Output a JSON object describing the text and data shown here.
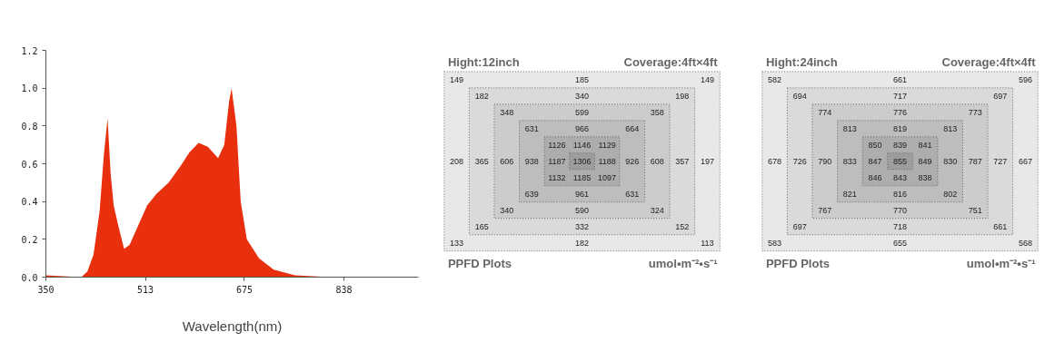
{
  "chart_data": [
    {
      "type": "area",
      "xlabel": "Wavelength(nm)",
      "x": [
        350,
        408,
        418,
        428,
        438,
        445,
        451,
        456,
        461,
        468,
        478,
        487,
        502,
        516,
        531,
        551,
        571,
        585,
        600,
        615,
        632,
        642,
        650,
        654,
        662,
        669,
        679,
        699,
        723,
        758,
        817,
        960
      ],
      "values": [
        0.01,
        0.0,
        0.03,
        0.12,
        0.35,
        0.65,
        0.84,
        0.55,
        0.38,
        0.28,
        0.15,
        0.17,
        0.28,
        0.38,
        0.44,
        0.5,
        0.59,
        0.66,
        0.71,
        0.69,
        0.63,
        0.7,
        0.93,
        1.0,
        0.8,
        0.4,
        0.2,
        0.1,
        0.04,
        0.01,
        0.0,
        0.0
      ],
      "color": "#e8300f",
      "xlim": [
        350,
        960
      ],
      "xticks": [
        350,
        513,
        675,
        838
      ],
      "ylim": [
        0,
        1.2
      ],
      "yticks": [
        {
          "value": 0,
          "label": "0.0"
        },
        {
          "value": 0.2,
          "label": "0.2"
        },
        {
          "value": 0.4,
          "label": "0.4"
        },
        {
          "value": 0.6,
          "label": "0.6"
        },
        {
          "value": 0.8,
          "label": "0.8"
        },
        {
          "value": 1.0,
          "label": "1.0"
        },
        {
          "value": 1.2,
          "label": "1.2"
        }
      ],
      "grid": false
    },
    {
      "type": "other",
      "title": "Hight:12inch",
      "subtitle": "Coverage:4ft×4ft",
      "annotations": [
        "PPFD Plots",
        "umol•m⁻²•s⁻¹"
      ],
      "cell_labels": [
        [
          "149",
          null,
          null,
          null,
          null,
          "185",
          null,
          null,
          null,
          null,
          "149"
        ],
        [
          null,
          "182",
          null,
          null,
          null,
          "340",
          null,
          null,
          null,
          "198",
          null
        ],
        [
          null,
          null,
          "348",
          null,
          null,
          "599",
          null,
          null,
          "358",
          null,
          null
        ],
        [
          null,
          null,
          null,
          "631",
          null,
          "966",
          null,
          "664",
          null,
          null,
          null
        ],
        [
          null,
          null,
          null,
          null,
          "1126",
          "1146",
          "1129",
          null,
          null,
          null,
          null
        ],
        [
          "208",
          "365",
          "606",
          "938",
          "1187",
          "1306",
          "1188",
          "926",
          "608",
          "357",
          "197"
        ],
        [
          null,
          null,
          null,
          null,
          "1132",
          "1185",
          "1097",
          null,
          null,
          null,
          null
        ],
        [
          null,
          null,
          null,
          "639",
          null,
          "961",
          null,
          "631",
          null,
          null,
          null
        ],
        [
          null,
          null,
          "340",
          null,
          null,
          "590",
          null,
          null,
          "324",
          null,
          null
        ],
        [
          null,
          "165",
          null,
          null,
          null,
          "332",
          null,
          null,
          null,
          "152",
          null
        ],
        [
          "133",
          null,
          null,
          null,
          null,
          "182",
          null,
          null,
          null,
          null,
          "113"
        ]
      ]
    },
    {
      "type": "other",
      "title": "Hight:24inch",
      "subtitle": "Coverage:4ft×4ft",
      "annotations": [
        "PPFD Plots",
        "umol•m⁻²•s⁻¹"
      ],
      "cell_labels": [
        [
          "582",
          null,
          null,
          null,
          null,
          "661",
          null,
          null,
          null,
          null,
          "596"
        ],
        [
          null,
          "694",
          null,
          null,
          null,
          "717",
          null,
          null,
          null,
          "697",
          null
        ],
        [
          null,
          null,
          "774",
          null,
          null,
          "776",
          null,
          null,
          "773",
          null,
          null
        ],
        [
          null,
          null,
          null,
          "813",
          null,
          "819",
          null,
          "813",
          null,
          null,
          null
        ],
        [
          null,
          null,
          null,
          null,
          "850",
          "839",
          "841",
          null,
          null,
          null,
          null
        ],
        [
          "678",
          "726",
          "790",
          "833",
          "847",
          "855",
          "849",
          "830",
          "787",
          "727",
          "667"
        ],
        [
          null,
          null,
          null,
          null,
          "846",
          "843",
          "838",
          null,
          null,
          null,
          null
        ],
        [
          null,
          null,
          null,
          "821",
          null,
          "816",
          null,
          "802",
          null,
          null,
          null
        ],
        [
          null,
          null,
          "767",
          null,
          null,
          "770",
          null,
          null,
          "751",
          null,
          null
        ],
        [
          null,
          "697",
          null,
          null,
          null,
          "718",
          null,
          null,
          null,
          "661",
          null
        ],
        [
          "583",
          null,
          null,
          null,
          null,
          "655",
          null,
          null,
          null,
          null,
          "568"
        ]
      ]
    }
  ]
}
